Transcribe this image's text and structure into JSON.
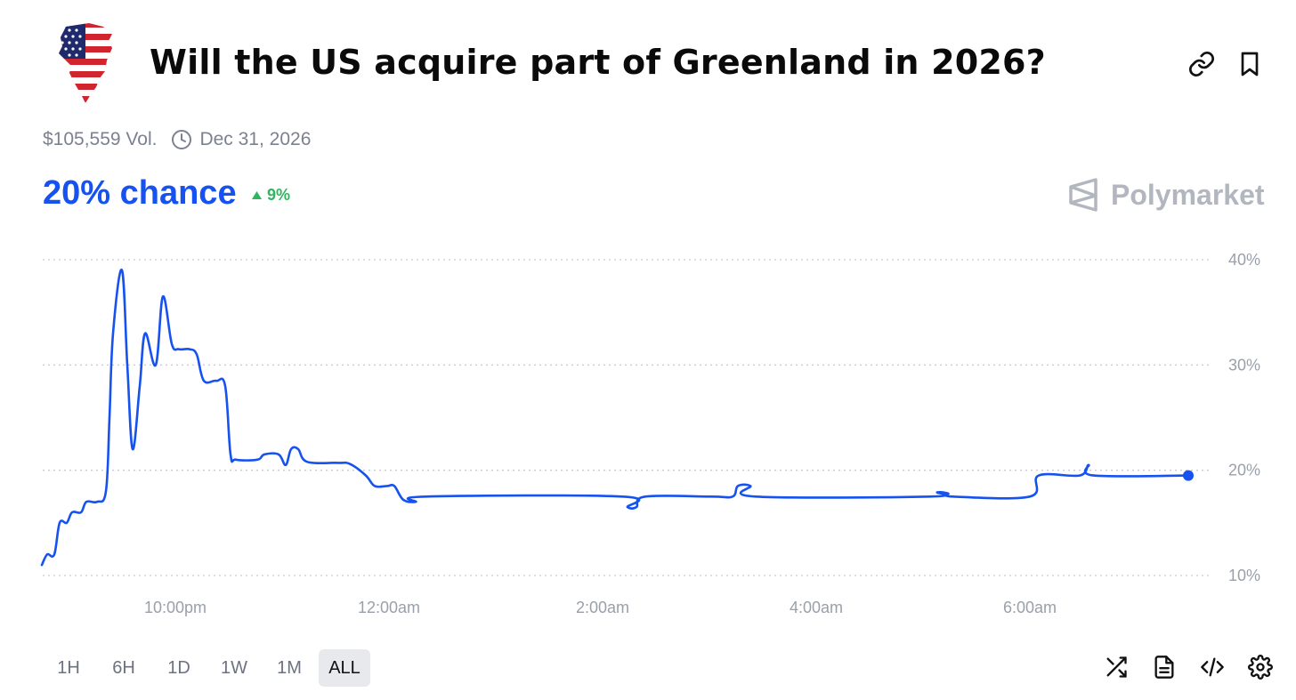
{
  "title": "Will the US acquire part of Greenland in 2026?",
  "volume": "$105,559 Vol.",
  "end_date": "Dec 31, 2026",
  "chance": "20% chance",
  "delta": "9%",
  "brand": "Polymarket",
  "ranges": [
    "1H",
    "6H",
    "1D",
    "1W",
    "1M",
    "ALL"
  ],
  "active_range": "ALL",
  "colors": {
    "accent": "#1652f0",
    "up": "#2fb560",
    "muted": "#7b8190"
  },
  "icons": {
    "header": [
      "link-icon",
      "bookmark-icon"
    ],
    "tools": [
      "shuffle-icon",
      "document-icon",
      "code-icon",
      "settings-icon"
    ]
  },
  "chart_data": {
    "type": "line",
    "series": [
      {
        "values": [
          [
            "20:45",
            11
          ],
          [
            "20:48",
            12
          ],
          [
            "20:52",
            12
          ],
          [
            "20:55",
            15
          ],
          [
            "20:59",
            15
          ],
          [
            "21:02",
            16
          ],
          [
            "21:07",
            16
          ],
          [
            "21:10",
            17
          ],
          [
            "21:16",
            17
          ],
          [
            "21:21",
            18
          ],
          [
            "21:23",
            25
          ],
          [
            "21:25",
            33
          ],
          [
            "21:30",
            39
          ],
          [
            "21:33",
            30
          ],
          [
            "21:36",
            22
          ],
          [
            "21:40",
            28
          ],
          [
            "21:43",
            33
          ],
          [
            "21:49",
            30
          ],
          [
            "21:53",
            36.5
          ],
          [
            "21:58",
            32
          ],
          [
            "22:02",
            31.5
          ],
          [
            "22:08",
            31.5
          ],
          [
            "22:12",
            31
          ],
          [
            "22:16",
            28.5
          ],
          [
            "22:23",
            28.5
          ],
          [
            "22:28",
            28
          ],
          [
            "22:31",
            21.5
          ],
          [
            "22:34",
            21
          ],
          [
            "22:46",
            21
          ],
          [
            "22:50",
            21.5
          ],
          [
            "22:58",
            21.5
          ],
          [
            "23:02",
            20.5
          ],
          [
            "23:05",
            22
          ],
          [
            "23:09",
            22
          ],
          [
            "23:14",
            20.8
          ],
          [
            "23:31",
            20.7
          ],
          [
            "23:38",
            20.6
          ],
          [
            "23:47",
            19.5
          ],
          [
            "23:52",
            18.5
          ],
          [
            "23:59",
            18.5
          ],
          [
            "00:03",
            18.5
          ],
          [
            "00:08",
            17.2
          ],
          [
            "00:15",
            17
          ],
          [
            "00:21",
            17.5
          ],
          [
            "02:11",
            17.5
          ],
          [
            "02:14",
            16.5
          ],
          [
            "02:19",
            16.5
          ],
          [
            "02:24",
            17.5
          ],
          [
            "03:01",
            17.5
          ],
          [
            "03:13",
            17.5
          ],
          [
            "03:16",
            18.5
          ],
          [
            "03:23",
            18.5
          ],
          [
            "03:26",
            17.5
          ],
          [
            "05:04",
            17.5
          ],
          [
            "05:08",
            17.9
          ],
          [
            "05:14",
            17.8
          ],
          [
            "05:17",
            17.5
          ],
          [
            "06:00",
            17.5
          ],
          [
            "06:05",
            19.5
          ],
          [
            "06:28",
            19.5
          ],
          [
            "06:33",
            20.5
          ],
          [
            "06:36",
            19.5
          ],
          [
            "07:29",
            19.5
          ]
        ]
      }
    ],
    "x_ticks": [
      "10:00pm",
      "12:00am",
      "2:00am",
      "4:00am",
      "6:00am"
    ],
    "y_ticks": [
      "40%",
      "30%",
      "20%",
      "10%"
    ],
    "ylim": [
      10,
      40
    ],
    "ylabel": "",
    "xlabel": "",
    "grid": true,
    "y_axis_side": "right"
  }
}
